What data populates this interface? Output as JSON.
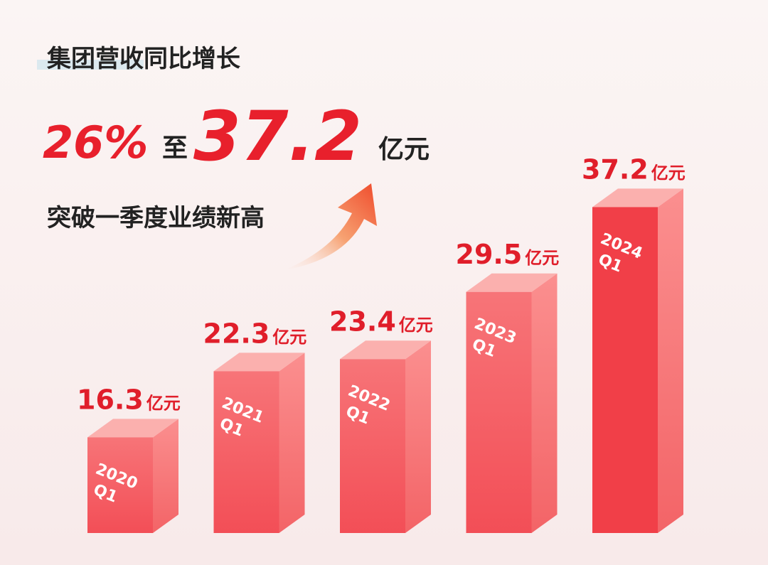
{
  "chart_data": {
    "type": "bar3d",
    "title": "集团营收同比增长",
    "headline": {
      "growth": "26%",
      "to": "至",
      "amount": "37.2",
      "unit": "亿元"
    },
    "subtitle": "突破一季度业绩新高",
    "categories": [
      [
        "2020",
        "Q1"
      ],
      [
        "2021",
        "Q1"
      ],
      [
        "2022",
        "Q1"
      ],
      [
        "2023",
        "Q1"
      ],
      [
        "2024",
        "Q1"
      ]
    ],
    "values": [
      16.3,
      22.3,
      23.4,
      29.5,
      37.2
    ],
    "unit": "亿元",
    "color": "#f0303a"
  }
}
